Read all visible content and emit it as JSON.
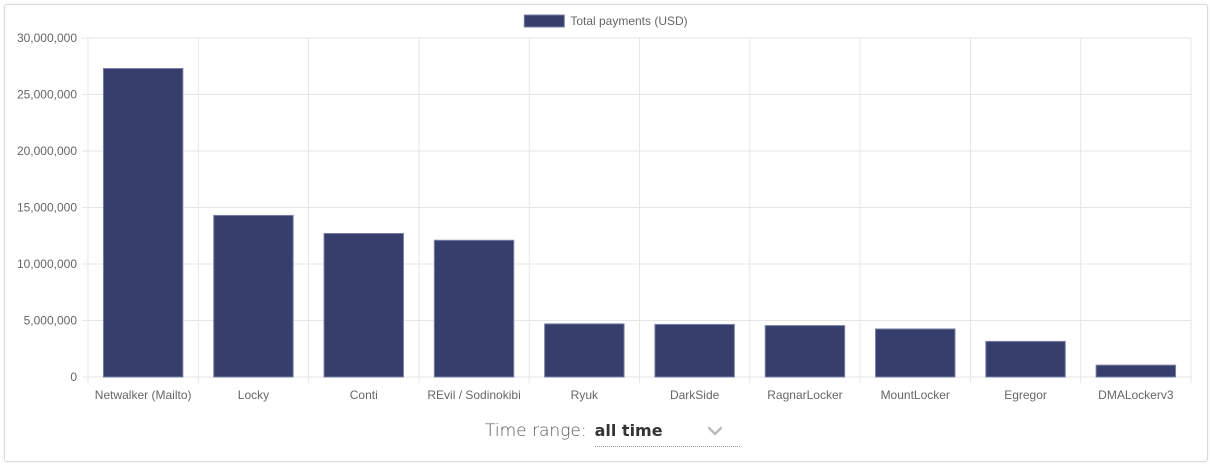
{
  "chart_data": {
    "type": "bar",
    "categories": [
      "Netwalker (Mailto)",
      "Locky",
      "Conti",
      "REvil / Sodinokibi",
      "Ryuk",
      "DarkSide",
      "RagnarLocker",
      "MountLocker",
      "Egregor",
      "DMALockerv3"
    ],
    "series": [
      {
        "name": "Total payments (USD)",
        "values": [
          27300000,
          14300000,
          12700000,
          12100000,
          4700000,
          4650000,
          4550000,
          4250000,
          3150000,
          1050000
        ]
      }
    ],
    "ylim": [
      0,
      30000000
    ],
    "yticks": [
      "30,000,000",
      "25,000,000",
      "20,000,000",
      "15,000,000",
      "10,000,000",
      "5,000,000",
      "0"
    ],
    "ytick_values": [
      30000000,
      25000000,
      20000000,
      15000000,
      10000000,
      5000000,
      0
    ],
    "legend_position": "top-center",
    "grid": true,
    "bar_color": "#363e6b",
    "bar_border_color": "#7a7fa3",
    "grid_color": "#e6e6e6"
  },
  "controls": {
    "time_range_label": "Time range:",
    "time_range_value": "all time"
  }
}
